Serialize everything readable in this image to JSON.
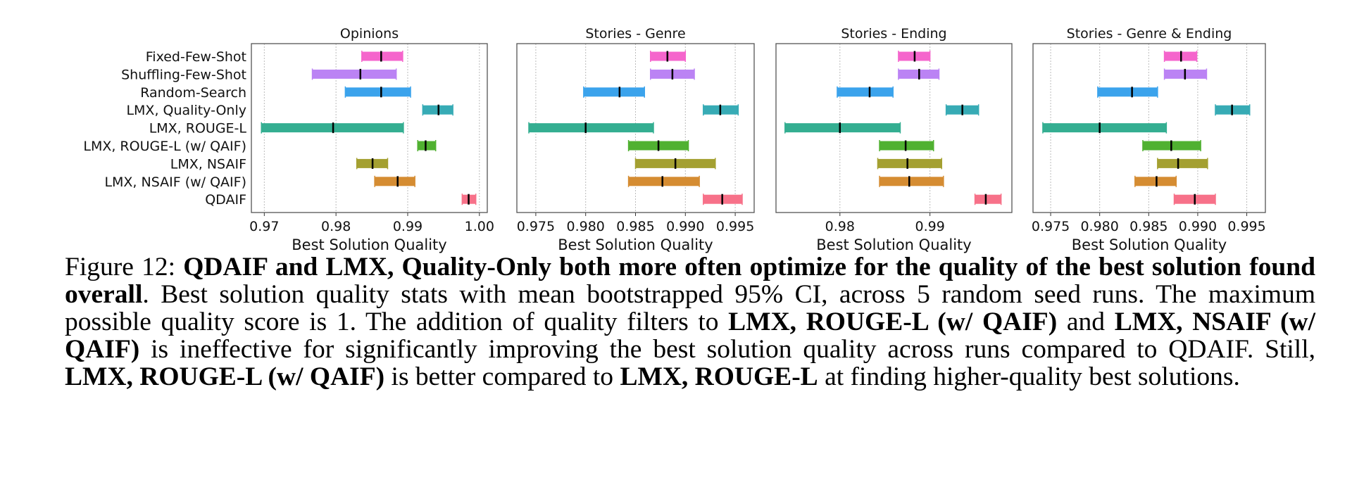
{
  "chart_data": {
    "type": "bar",
    "subtype": "horizontal-interval (mean with 95% CI)",
    "categories": [
      "Fixed-Few-Shot",
      "Shuffling-Few-Shot",
      "Random-Search",
      "LMX, Quality-Only",
      "LMX, ROUGE-L",
      "LMX, ROUGE-L (w/ QAIF)",
      "LMX, NSAIF",
      "LMX, NSAIF (w/ QAIF)",
      "QDAIF"
    ],
    "colors": [
      "#f565cc",
      "#bb83f4",
      "#3ba3ec",
      "#37abb5",
      "#34ae91",
      "#50b131",
      "#a4a031",
      "#d58c32",
      "#f77189"
    ],
    "xlabel": "Best Solution Quality",
    "grid": "x dotted",
    "panels": [
      {
        "title": "Opinions",
        "xlim": [
          0.9682,
          1.0011
        ],
        "ticks": [
          0.97,
          0.98,
          0.99,
          1.0
        ],
        "tick_labels": [
          "0.97",
          "0.98",
          "0.99",
          "1.00"
        ],
        "series": [
          {
            "low": 0.9836,
            "mean": 0.9863,
            "high": 0.9893
          },
          {
            "low": 0.9767,
            "mean": 0.9834,
            "high": 0.9884
          },
          {
            "low": 0.9813,
            "mean": 0.9863,
            "high": 0.9904
          },
          {
            "low": 0.9921,
            "mean": 0.9943,
            "high": 0.9963
          },
          {
            "low": 0.9696,
            "mean": 0.9796,
            "high": 0.9894
          },
          {
            "low": 0.9914,
            "mean": 0.9925,
            "high": 0.9939
          },
          {
            "low": 0.9829,
            "mean": 0.9851,
            "high": 0.9872
          },
          {
            "low": 0.9854,
            "mean": 0.9886,
            "high": 0.991
          },
          {
            "low": 0.9976,
            "mean": 0.9985,
            "high": 0.9995
          }
        ]
      },
      {
        "title": "Stories - Genre",
        "xlim": [
          0.9731,
          0.9969
        ],
        "ticks": [
          0.975,
          0.98,
          0.985,
          0.99,
          0.995
        ],
        "tick_labels": [
          "0.975",
          "0.980",
          "0.985",
          "0.990",
          "0.995"
        ],
        "series": [
          {
            "low": 0.9865,
            "mean": 0.9882,
            "high": 0.99
          },
          {
            "low": 0.9865,
            "mean": 0.9887,
            "high": 0.9909
          },
          {
            "low": 0.9798,
            "mean": 0.9834,
            "high": 0.9859
          },
          {
            "low": 0.9918,
            "mean": 0.9935,
            "high": 0.9953
          },
          {
            "low": 0.9743,
            "mean": 0.98,
            "high": 0.9868
          },
          {
            "low": 0.9843,
            "mean": 0.9873,
            "high": 0.9903
          },
          {
            "low": 0.985,
            "mean": 0.989,
            "high": 0.993
          },
          {
            "low": 0.9843,
            "mean": 0.9877,
            "high": 0.9914
          },
          {
            "low": 0.9918,
            "mean": 0.9937,
            "high": 0.9957
          }
        ]
      },
      {
        "title": "Stories - Ending",
        "xlim": [
          0.9729,
          0.9991
        ],
        "ticks": [
          0.98,
          0.99
        ],
        "tick_labels": [
          "0.98",
          "0.99"
        ],
        "series": [
          {
            "low": 0.9865,
            "mean": 0.9883,
            "high": 0.99
          },
          {
            "low": 0.9865,
            "mean": 0.9888,
            "high": 0.991
          },
          {
            "low": 0.9797,
            "mean": 0.9833,
            "high": 0.9859
          },
          {
            "low": 0.9918,
            "mean": 0.9936,
            "high": 0.9954
          },
          {
            "low": 0.9739,
            "mean": 0.98,
            "high": 0.9867
          },
          {
            "low": 0.9844,
            "mean": 0.9873,
            "high": 0.9904
          },
          {
            "low": 0.9842,
            "mean": 0.9875,
            "high": 0.9913
          },
          {
            "low": 0.9844,
            "mean": 0.9877,
            "high": 0.9915
          },
          {
            "low": 0.995,
            "mean": 0.9962,
            "high": 0.9979
          }
        ]
      },
      {
        "title": "Stories - Genre & Ending",
        "xlim": [
          0.9732,
          0.9969
        ],
        "ticks": [
          0.975,
          0.98,
          0.985,
          0.99,
          0.995
        ],
        "tick_labels": [
          "0.975",
          "0.980",
          "0.985",
          "0.990",
          "0.995"
        ],
        "series": [
          {
            "low": 0.9866,
            "mean": 0.9883,
            "high": 0.9899
          },
          {
            "low": 0.9866,
            "mean": 0.9887,
            "high": 0.9909
          },
          {
            "low": 0.9798,
            "mean": 0.9833,
            "high": 0.9859
          },
          {
            "low": 0.9918,
            "mean": 0.9935,
            "high": 0.9953
          },
          {
            "low": 0.9742,
            "mean": 0.98,
            "high": 0.9868
          },
          {
            "low": 0.9844,
            "mean": 0.9873,
            "high": 0.9903
          },
          {
            "low": 0.9859,
            "mean": 0.988,
            "high": 0.991
          },
          {
            "low": 0.9836,
            "mean": 0.9858,
            "high": 0.9878
          },
          {
            "low": 0.9876,
            "mean": 0.9897,
            "high": 0.9918
          }
        ]
      }
    ]
  },
  "caption": {
    "label": "Figure 12: ",
    "bold_1": "QDAIF and LMX, Quality-Only both more often optimize for the quality of the best solution found overall",
    "text_1": ". Best solution quality stats with mean bootstrapped 95% CI, across 5 random seed runs. The maximum possible quality score is 1. The addition of quality filters to ",
    "bold_2": "LMX, ROUGE-L (w/ QAIF)",
    "text_2": " and ",
    "bold_3": "LMX, NSAIF (w/ QAIF)",
    "text_3": " is ineffective for significantly improving the best solution quality across runs compared to QDAIF. Still, ",
    "bold_4": "LMX, ROUGE-L (w/ QAIF)",
    "text_4": " is better compared to ",
    "bold_5": "LMX, ROUGE-L",
    "text_5": " at finding higher-quality best solutions."
  }
}
